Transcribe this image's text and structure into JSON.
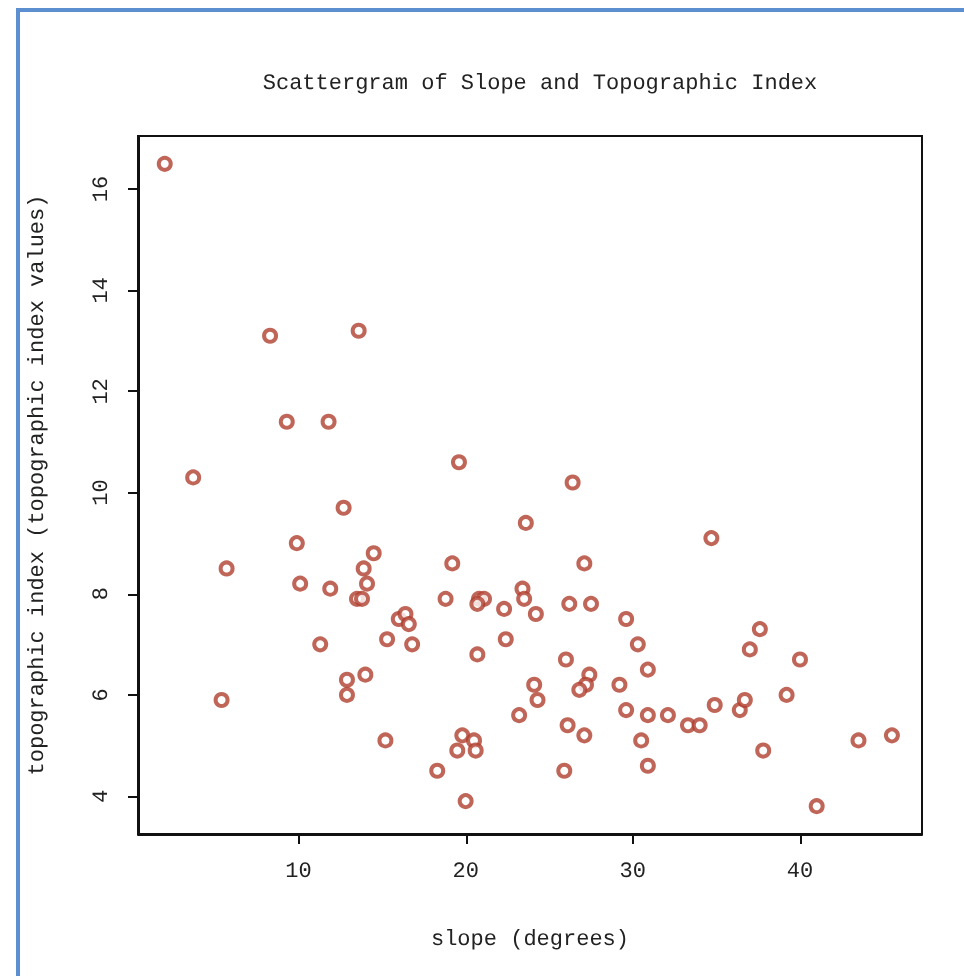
{
  "chart_data": {
    "type": "scatter",
    "title": "Scattergram of Slope and Topographic Index",
    "xlabel": "slope (degrees)",
    "ylabel": "topographic index (topographic index values)",
    "x": [
      2.0,
      3.7,
      5.7,
      5.4,
      8.3,
      9.3,
      11.8,
      13.6,
      19.6,
      12.7,
      9.9,
      10.1,
      11.9,
      14.5,
      13.9,
      14.1,
      13.5,
      13.8,
      19.2,
      18.8,
      20.8,
      21.1,
      20.7,
      22.3,
      22.4,
      16.0,
      16.4,
      16.6,
      11.3,
      15.3,
      16.8,
      20.7,
      14.0,
      12.9,
      12.9,
      15.2,
      19.8,
      20.5,
      19.5,
      20.6,
      18.3,
      20.0,
      26.4,
      23.6,
      34.7,
      27.1,
      23.4,
      23.5,
      24.2,
      26.2,
      27.5,
      29.6,
      30.3,
      30.9,
      26.0,
      27.4,
      27.2,
      26.8,
      24.1,
      24.3,
      23.2,
      29.2,
      29.6,
      30.9,
      32.1,
      33.3,
      34.0,
      34.9,
      36.4,
      36.7,
      37.6,
      37.0,
      40.0,
      39.2,
      37.8,
      41.0,
      43.5,
      45.5,
      26.1,
      27.1,
      30.5,
      25.9,
      30.9
    ],
    "values": [
      16.5,
      10.3,
      8.5,
      5.9,
      13.1,
      11.4,
      11.4,
      13.2,
      10.6,
      9.7,
      9.0,
      8.2,
      8.1,
      8.8,
      8.5,
      8.2,
      7.9,
      7.9,
      8.6,
      7.9,
      7.9,
      7.9,
      7.8,
      7.7,
      7.1,
      7.5,
      7.6,
      7.4,
      7.0,
      7.1,
      7.0,
      6.8,
      6.4,
      6.3,
      6.0,
      5.1,
      5.2,
      5.1,
      4.9,
      4.9,
      4.5,
      3.9,
      10.2,
      9.4,
      9.1,
      8.6,
      8.1,
      7.9,
      7.6,
      7.8,
      7.8,
      7.5,
      7.0,
      6.5,
      6.7,
      6.4,
      6.2,
      6.1,
      6.2,
      5.9,
      5.6,
      6.2,
      5.7,
      5.6,
      5.6,
      5.4,
      5.4,
      5.8,
      5.7,
      5.9,
      7.3,
      6.9,
      6.7,
      6.0,
      4.9,
      3.8,
      5.1,
      5.2,
      5.4,
      5.2,
      5.1,
      4.5,
      4.6
    ],
    "color": "#b0402f",
    "marker": "circle",
    "xlim": [
      0.4,
      47.3
    ],
    "ylim": [
      3.25,
      17.05
    ],
    "xticks": [
      10,
      20,
      30,
      40
    ],
    "yticks": [
      4,
      6,
      8,
      10,
      12,
      14,
      16
    ],
    "grid": false
  }
}
